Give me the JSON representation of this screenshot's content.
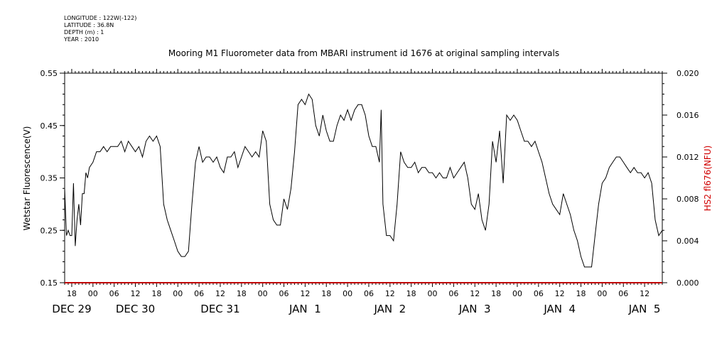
{
  "meta": {
    "longitude": "LONGITUDE : 122W(-122)",
    "latitude": "LATITUDE : 36.8N",
    "depth": "DEPTH (m) : 1",
    "year": "YEAR : 2010"
  },
  "chart_data": {
    "type": "line",
    "title": "Mooring M1 Fluorometer data from MBARI instrument id 1676 at original sampling intervals",
    "ylabel": "Wetstar Fluorescence(V)",
    "y2label": "HS2 fl676(NFU)",
    "ylim": [
      0.15,
      0.55
    ],
    "y2lim": [
      0.0,
      0.02
    ],
    "yticks": [
      "0.15",
      "0.25",
      "0.35",
      "0.45",
      "0.55"
    ],
    "y2ticks": [
      "0.000",
      "0.004",
      "0.008",
      "0.012",
      "0.016",
      "0.020"
    ],
    "xlim_hours": [
      -8,
      161
    ],
    "hour_ticks": [
      {
        "h": -6,
        "label": "18"
      },
      {
        "h": 0,
        "label": "00"
      },
      {
        "h": 6,
        "label": "06"
      },
      {
        "h": 12,
        "label": "12"
      },
      {
        "h": 18,
        "label": "18"
      },
      {
        "h": 24,
        "label": "00"
      },
      {
        "h": 30,
        "label": "06"
      },
      {
        "h": 36,
        "label": "12"
      },
      {
        "h": 42,
        "label": "18"
      },
      {
        "h": 48,
        "label": "00"
      },
      {
        "h": 54,
        "label": "06"
      },
      {
        "h": 60,
        "label": "12"
      },
      {
        "h": 66,
        "label": "18"
      },
      {
        "h": 72,
        "label": "00"
      },
      {
        "h": 78,
        "label": "06"
      },
      {
        "h": 84,
        "label": "12"
      },
      {
        "h": 90,
        "label": "18"
      },
      {
        "h": 96,
        "label": "00"
      },
      {
        "h": 102,
        "label": "06"
      },
      {
        "h": 108,
        "label": "12"
      },
      {
        "h": 114,
        "label": "18"
      },
      {
        "h": 120,
        "label": "00"
      },
      {
        "h": 126,
        "label": "06"
      },
      {
        "h": 132,
        "label": "12"
      },
      {
        "h": 138,
        "label": "18"
      },
      {
        "h": 144,
        "label": "00"
      },
      {
        "h": 150,
        "label": "06"
      },
      {
        "h": 156,
        "label": "12"
      }
    ],
    "date_labels": [
      {
        "h": -6,
        "label": "DEC 29"
      },
      {
        "h": 12,
        "label": "DEC 30"
      },
      {
        "h": 36,
        "label": "DEC 31"
      },
      {
        "h": 60,
        "label": "JAN  1"
      },
      {
        "h": 84,
        "label": "JAN  2"
      },
      {
        "h": 108,
        "label": "JAN  3"
      },
      {
        "h": 132,
        "label": "JAN  4"
      },
      {
        "h": 156,
        "label": "JAN  5"
      }
    ],
    "series": [
      {
        "axis": "left",
        "color": "#000000",
        "points": [
          [
            -8,
            0.33
          ],
          [
            -7.5,
            0.24
          ],
          [
            -7,
            0.25
          ],
          [
            -6.5,
            0.24
          ],
          [
            -6,
            0.24
          ],
          [
            -5.5,
            0.34
          ],
          [
            -5,
            0.22
          ],
          [
            -4.5,
            0.27
          ],
          [
            -4,
            0.3
          ],
          [
            -3.5,
            0.26
          ],
          [
            -3,
            0.32
          ],
          [
            -2.5,
            0.32
          ],
          [
            -2,
            0.36
          ],
          [
            -1.5,
            0.35
          ],
          [
            -1,
            0.37
          ],
          [
            0,
            0.38
          ],
          [
            1,
            0.4
          ],
          [
            2,
            0.4
          ],
          [
            3,
            0.41
          ],
          [
            4,
            0.4
          ],
          [
            5,
            0.41
          ],
          [
            6,
            0.41
          ],
          [
            7,
            0.41
          ],
          [
            8,
            0.42
          ],
          [
            9,
            0.4
          ],
          [
            10,
            0.42
          ],
          [
            11,
            0.41
          ],
          [
            12,
            0.4
          ],
          [
            13,
            0.41
          ],
          [
            14,
            0.39
          ],
          [
            15,
            0.42
          ],
          [
            16,
            0.43
          ],
          [
            17,
            0.42
          ],
          [
            18,
            0.43
          ],
          [
            19,
            0.41
          ],
          [
            20,
            0.3
          ],
          [
            21,
            0.27
          ],
          [
            22,
            0.25
          ],
          [
            23,
            0.23
          ],
          [
            24,
            0.21
          ],
          [
            25,
            0.2
          ],
          [
            26,
            0.2
          ],
          [
            27,
            0.21
          ],
          [
            28,
            0.3
          ],
          [
            29,
            0.38
          ],
          [
            30,
            0.41
          ],
          [
            31,
            0.38
          ],
          [
            32,
            0.39
          ],
          [
            33,
            0.39
          ],
          [
            34,
            0.38
          ],
          [
            35,
            0.39
          ],
          [
            36,
            0.37
          ],
          [
            37,
            0.36
          ],
          [
            38,
            0.39
          ],
          [
            39,
            0.39
          ],
          [
            40,
            0.4
          ],
          [
            41,
            0.37
          ],
          [
            42,
            0.39
          ],
          [
            43,
            0.41
          ],
          [
            44,
            0.4
          ],
          [
            45,
            0.39
          ],
          [
            46,
            0.4
          ],
          [
            47,
            0.39
          ],
          [
            48,
            0.44
          ],
          [
            49,
            0.42
          ],
          [
            50,
            0.3
          ],
          [
            51,
            0.27
          ],
          [
            52,
            0.26
          ],
          [
            53,
            0.26
          ],
          [
            54,
            0.31
          ],
          [
            55,
            0.29
          ],
          [
            56,
            0.33
          ],
          [
            57,
            0.4
          ],
          [
            58,
            0.49
          ],
          [
            59,
            0.5
          ],
          [
            60,
            0.49
          ],
          [
            61,
            0.51
          ],
          [
            62,
            0.5
          ],
          [
            63,
            0.45
          ],
          [
            64,
            0.43
          ],
          [
            65,
            0.47
          ],
          [
            66,
            0.44
          ],
          [
            67,
            0.42
          ],
          [
            68,
            0.42
          ],
          [
            69,
            0.45
          ],
          [
            70,
            0.47
          ],
          [
            71,
            0.46
          ],
          [
            72,
            0.48
          ],
          [
            73,
            0.46
          ],
          [
            74,
            0.48
          ],
          [
            75,
            0.49
          ],
          [
            76,
            0.49
          ],
          [
            77,
            0.47
          ],
          [
            78,
            0.43
          ],
          [
            79,
            0.41
          ],
          [
            80,
            0.41
          ],
          [
            81,
            0.38
          ],
          [
            81.5,
            0.48
          ],
          [
            82,
            0.3
          ],
          [
            83,
            0.24
          ],
          [
            84,
            0.24
          ],
          [
            85,
            0.23
          ],
          [
            86,
            0.3
          ],
          [
            87,
            0.4
          ],
          [
            88,
            0.38
          ],
          [
            89,
            0.37
          ],
          [
            90,
            0.37
          ],
          [
            91,
            0.38
          ],
          [
            92,
            0.36
          ],
          [
            93,
            0.37
          ],
          [
            94,
            0.37
          ],
          [
            95,
            0.36
          ],
          [
            96,
            0.36
          ],
          [
            97,
            0.35
          ],
          [
            98,
            0.36
          ],
          [
            99,
            0.35
          ],
          [
            100,
            0.35
          ],
          [
            101,
            0.37
          ],
          [
            102,
            0.35
          ],
          [
            103,
            0.36
          ],
          [
            104,
            0.37
          ],
          [
            105,
            0.38
          ],
          [
            106,
            0.35
          ],
          [
            107,
            0.3
          ],
          [
            108,
            0.29
          ],
          [
            109,
            0.32
          ],
          [
            110,
            0.27
          ],
          [
            111,
            0.25
          ],
          [
            112,
            0.3
          ],
          [
            113,
            0.42
          ],
          [
            114,
            0.38
          ],
          [
            115,
            0.44
          ],
          [
            116,
            0.34
          ],
          [
            117,
            0.47
          ],
          [
            118,
            0.46
          ],
          [
            119,
            0.47
          ],
          [
            120,
            0.46
          ],
          [
            121,
            0.44
          ],
          [
            122,
            0.42
          ],
          [
            123,
            0.42
          ],
          [
            124,
            0.41
          ],
          [
            125,
            0.42
          ],
          [
            126,
            0.4
          ],
          [
            127,
            0.38
          ],
          [
            128,
            0.35
          ],
          [
            129,
            0.32
          ],
          [
            130,
            0.3
          ],
          [
            131,
            0.29
          ],
          [
            132,
            0.28
          ],
          [
            133,
            0.32
          ],
          [
            134,
            0.3
          ],
          [
            135,
            0.28
          ],
          [
            136,
            0.25
          ],
          [
            137,
            0.23
          ],
          [
            138,
            0.2
          ],
          [
            139,
            0.18
          ],
          [
            140,
            0.18
          ],
          [
            141,
            0.18
          ],
          [
            142,
            0.24
          ],
          [
            143,
            0.3
          ],
          [
            144,
            0.34
          ],
          [
            145,
            0.35
          ],
          [
            146,
            0.37
          ],
          [
            147,
            0.38
          ],
          [
            148,
            0.39
          ],
          [
            149,
            0.39
          ],
          [
            150,
            0.38
          ],
          [
            151,
            0.37
          ],
          [
            152,
            0.36
          ],
          [
            153,
            0.37
          ],
          [
            154,
            0.36
          ],
          [
            155,
            0.36
          ],
          [
            156,
            0.35
          ],
          [
            157,
            0.36
          ],
          [
            158,
            0.34
          ],
          [
            159,
            0.27
          ],
          [
            160,
            0.24
          ],
          [
            161,
            0.25
          ]
        ]
      },
      {
        "axis": "right",
        "color": "#c00000",
        "points": [
          [
            -8,
            0.0
          ],
          [
            161,
            0.0
          ]
        ]
      }
    ]
  }
}
